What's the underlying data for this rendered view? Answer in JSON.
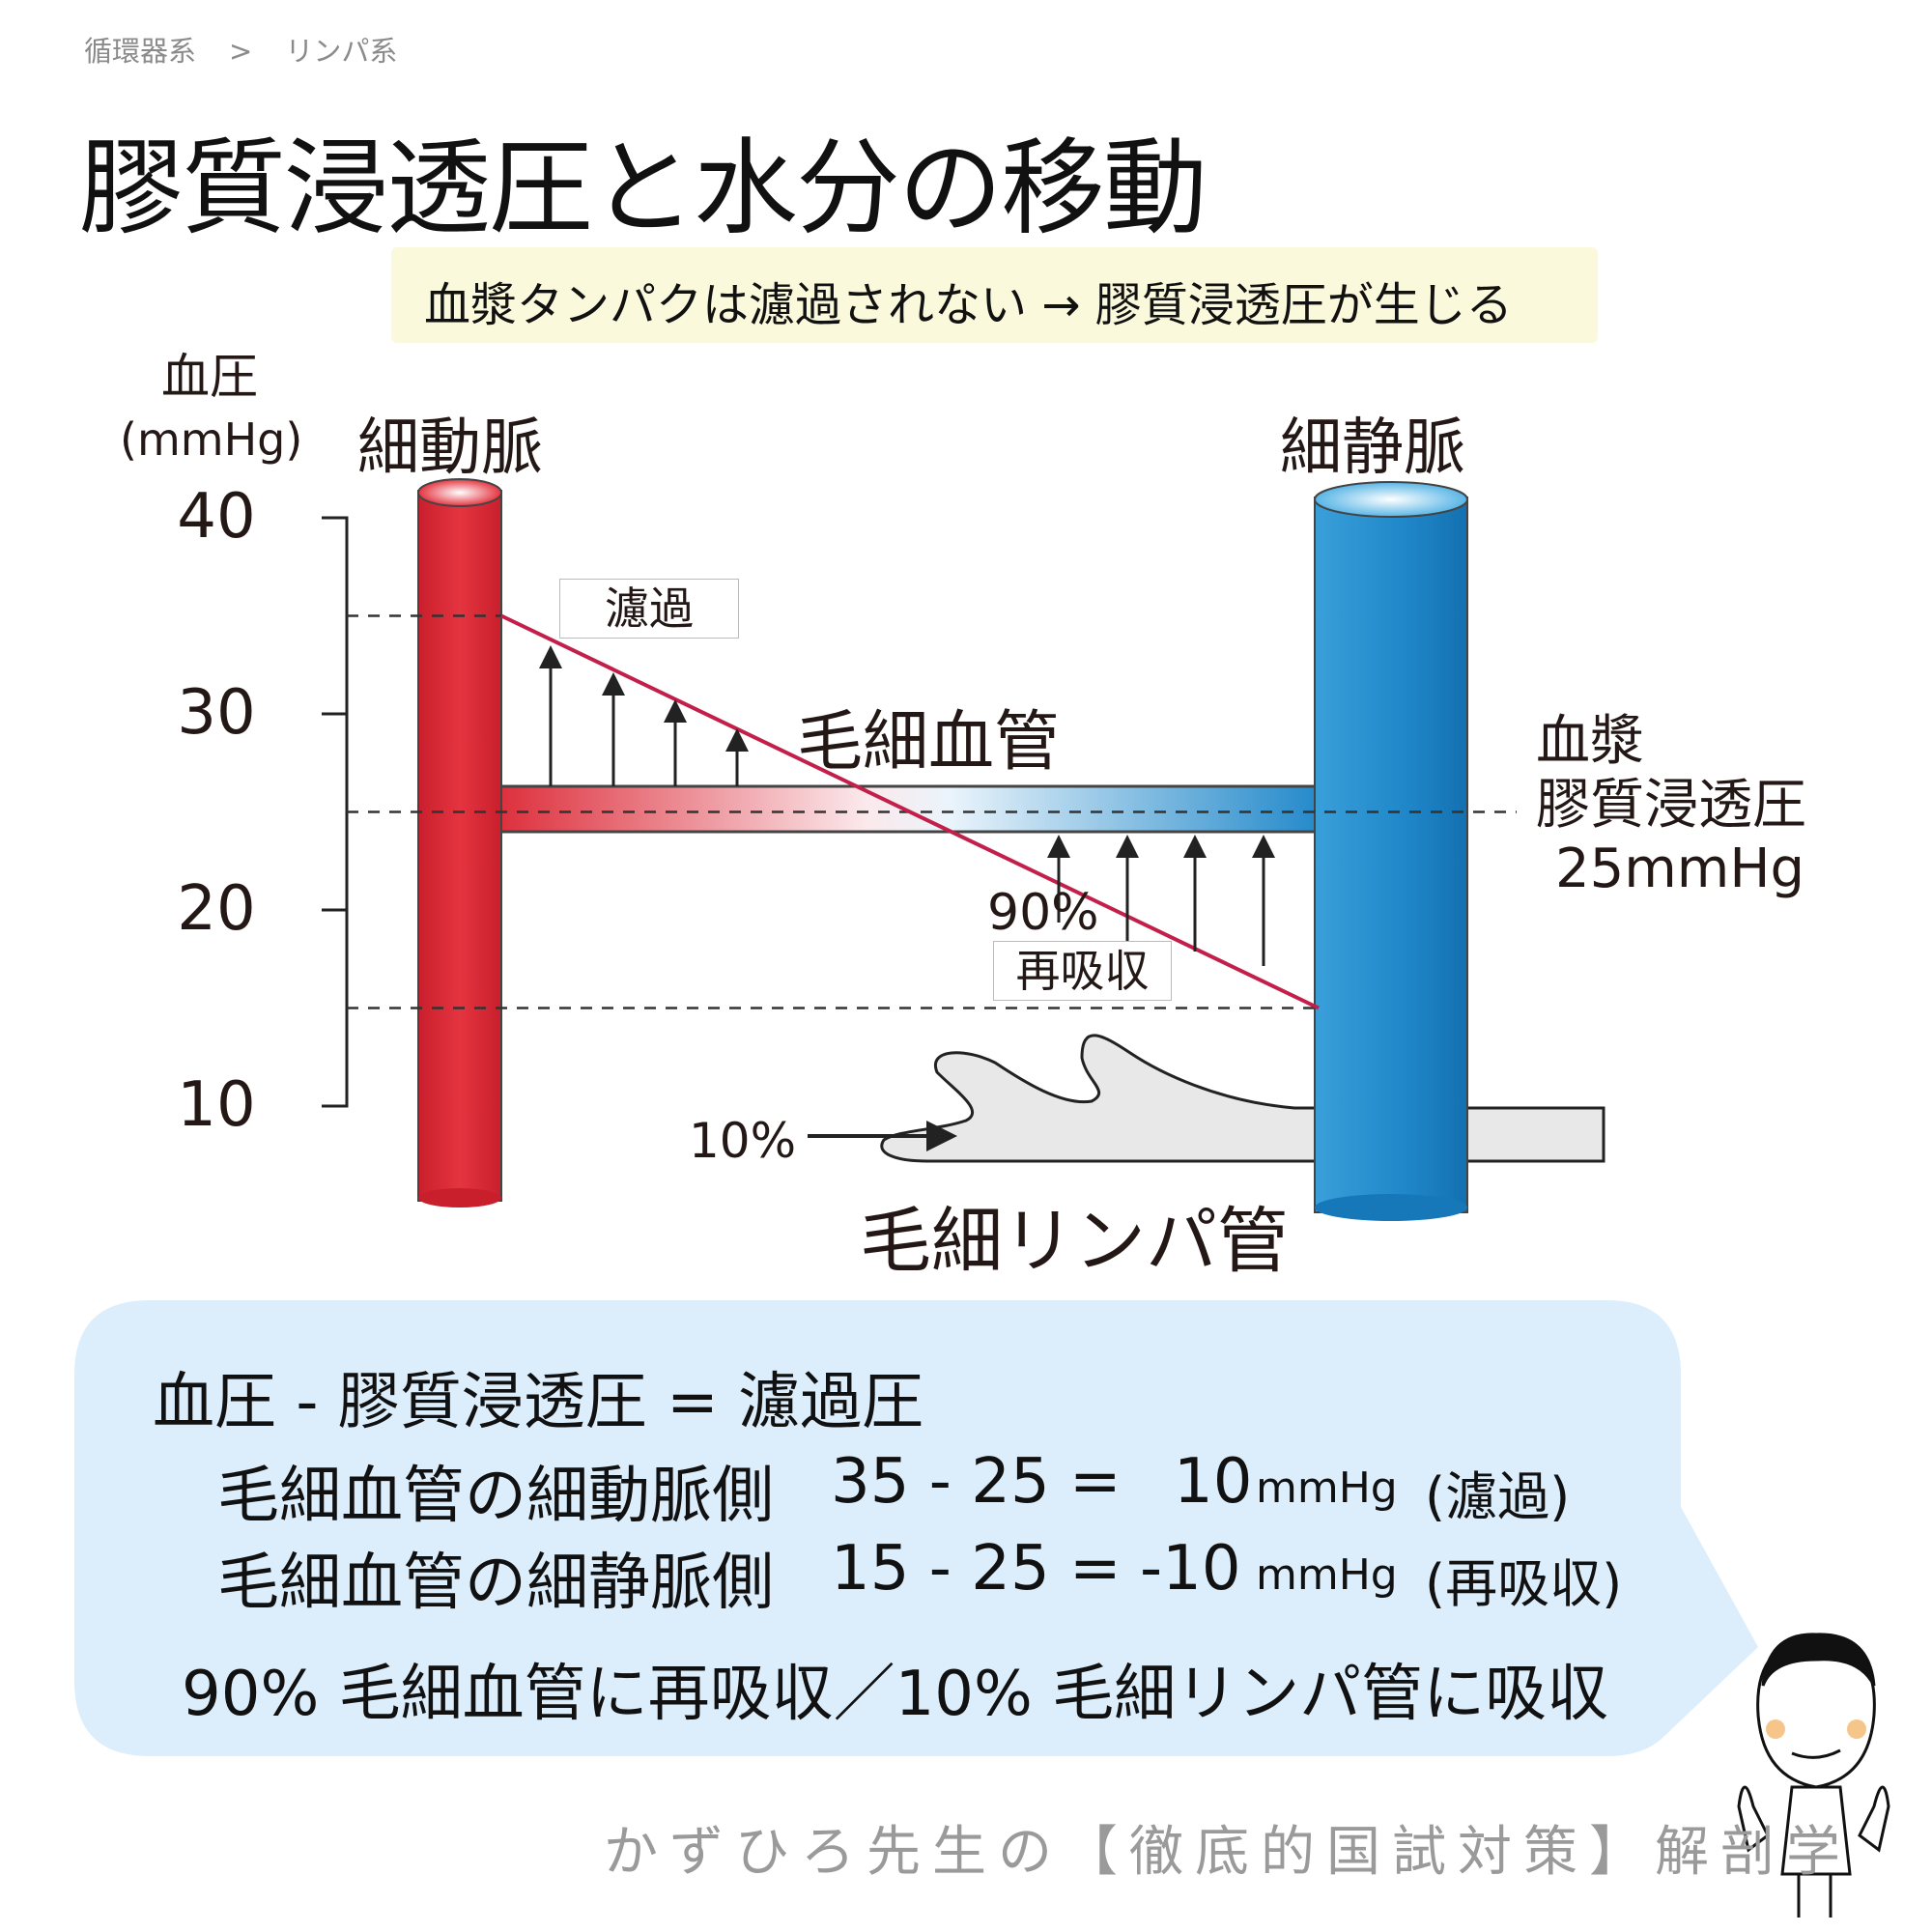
{
  "breadcrumb": [
    "循環器系",
    ">",
    "リンパ系"
  ],
  "title": "膠質浸透圧と水分の移動",
  "note": "血漿タンパクは濾過されない → 膠質浸透圧が生じる",
  "axis": {
    "label": "血圧",
    "unit": "(mmHg)",
    "ticks": [
      "40",
      "30",
      "20",
      "10"
    ],
    "tick_values": [
      40,
      30,
      20,
      10
    ]
  },
  "vessels": {
    "arteriole": "細動脈",
    "venule": "細静脈",
    "capillary": "毛細血管",
    "lymph": "毛細リンパ管"
  },
  "pressure": {
    "arterial_end": 35,
    "venous_end": 15,
    "oncotic": 25
  },
  "labels": {
    "filtration": "濾過",
    "reabsorb_pct": "90%",
    "reabsorb": "再吸収",
    "lymph_pct": "10%",
    "oncotic_1": "血漿",
    "oncotic_2": "膠質浸透圧",
    "oncotic_3": "25mmHg"
  },
  "colors": {
    "artery": "#dc2a37",
    "vein": "#1f87c9",
    "pressure_line": "#c21f4a",
    "callout": "#dcedfb",
    "note": "#fbf9dc"
  },
  "callout": {
    "formula": "血圧 - 膠質浸透圧 = 濾過圧",
    "rows": [
      {
        "side": "毛細血管の細動脈側",
        "expr": "35 - 25 =",
        "value": "10",
        "unit": "mmHg",
        "result": "(濾過)"
      },
      {
        "side": "毛細血管の細静脈側",
        "expr": "15 - 25 =",
        "value": "-10",
        "unit": "mmHg",
        "result": "(再吸収)"
      }
    ],
    "summary": "90% 毛細血管に再吸収／10% 毛細リンパ管に吸収"
  },
  "footer": "かずひろ先生の【徹底的国試対策】解剖学"
}
